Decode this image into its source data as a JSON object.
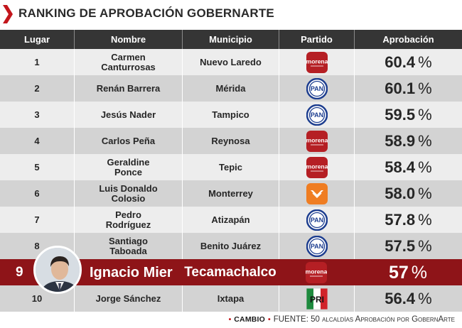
{
  "title": "RANKING DE APROBACIÓN GOBERNARTE",
  "colors": {
    "accent_red": "#c3161c",
    "header_bg": "#353535",
    "row_light": "#ededed",
    "row_dark": "#d3d3d3",
    "highlight": "#8e1418",
    "morena": "#b51f24",
    "pan": "#1c3d8f",
    "mc": "#ef7d22"
  },
  "headers": {
    "lugar": "Lugar",
    "nombre": "Nombre",
    "municipio": "Municipio",
    "partido": "Partido",
    "aprobacion": "Aprobación"
  },
  "rows": [
    {
      "lugar": "1",
      "nombre": [
        "Carmen",
        "Canturrosas"
      ],
      "municipio": "Nuevo Laredo",
      "partido": "morena",
      "aprobacion": "60.4",
      "unit": "%"
    },
    {
      "lugar": "2",
      "nombre": [
        "Renán Barrera"
      ],
      "municipio": "Mérida",
      "partido": "pan",
      "aprobacion": "60.1",
      "unit": "%"
    },
    {
      "lugar": "3",
      "nombre": [
        "Jesús Nader"
      ],
      "municipio": "Tampico",
      "partido": "pan",
      "aprobacion": "59.5",
      "unit": "%"
    },
    {
      "lugar": "4",
      "nombre": [
        "Carlos Peña"
      ],
      "municipio": "Reynosa",
      "partido": "morena",
      "aprobacion": "58.9",
      "unit": "%"
    },
    {
      "lugar": "5",
      "nombre": [
        "Geraldine",
        "Ponce"
      ],
      "municipio": "Tepic",
      "partido": "morena",
      "aprobacion": "58.4",
      "unit": "%"
    },
    {
      "lugar": "6",
      "nombre": [
        "Luis Donaldo",
        "Colosio"
      ],
      "municipio": "Monterrey",
      "partido": "mc",
      "aprobacion": "58.0",
      "unit": "%"
    },
    {
      "lugar": "7",
      "nombre": [
        "Pedro",
        "Rodríguez"
      ],
      "municipio": "Atizapán",
      "partido": "pan",
      "aprobacion": "57.8",
      "unit": "%"
    },
    {
      "lugar": "8",
      "nombre": [
        "Santiago",
        "Taboada"
      ],
      "municipio": "Benito Juárez",
      "partido": "pan",
      "aprobacion": "57.5",
      "unit": "%"
    },
    {
      "lugar": "9",
      "nombre": [
        "Ignacio Mier"
      ],
      "municipio": "Tecamachalco",
      "partido": "morena",
      "aprobacion": "57",
      "unit": "%",
      "highlight": true
    },
    {
      "lugar": "10",
      "nombre": [
        "Jorge Sánchez"
      ],
      "municipio": "Ixtapa",
      "partido": "pri",
      "aprobacion": "56.4",
      "unit": "%"
    }
  ],
  "logos": {
    "morena": {
      "text": "morena",
      "icon": "morena-logo-icon"
    },
    "pan": {
      "text": "PAN",
      "icon": "pan-logo-icon"
    },
    "pri": {
      "text": "PRI",
      "icon": "pri-logo-icon"
    },
    "mc": {
      "icon": "movimiento-ciudadano-logo-icon"
    }
  },
  "footer": {
    "brand": "CAMBIO",
    "source": "FUENTE: 50 alcaldías Aprobación por GobernArte"
  }
}
